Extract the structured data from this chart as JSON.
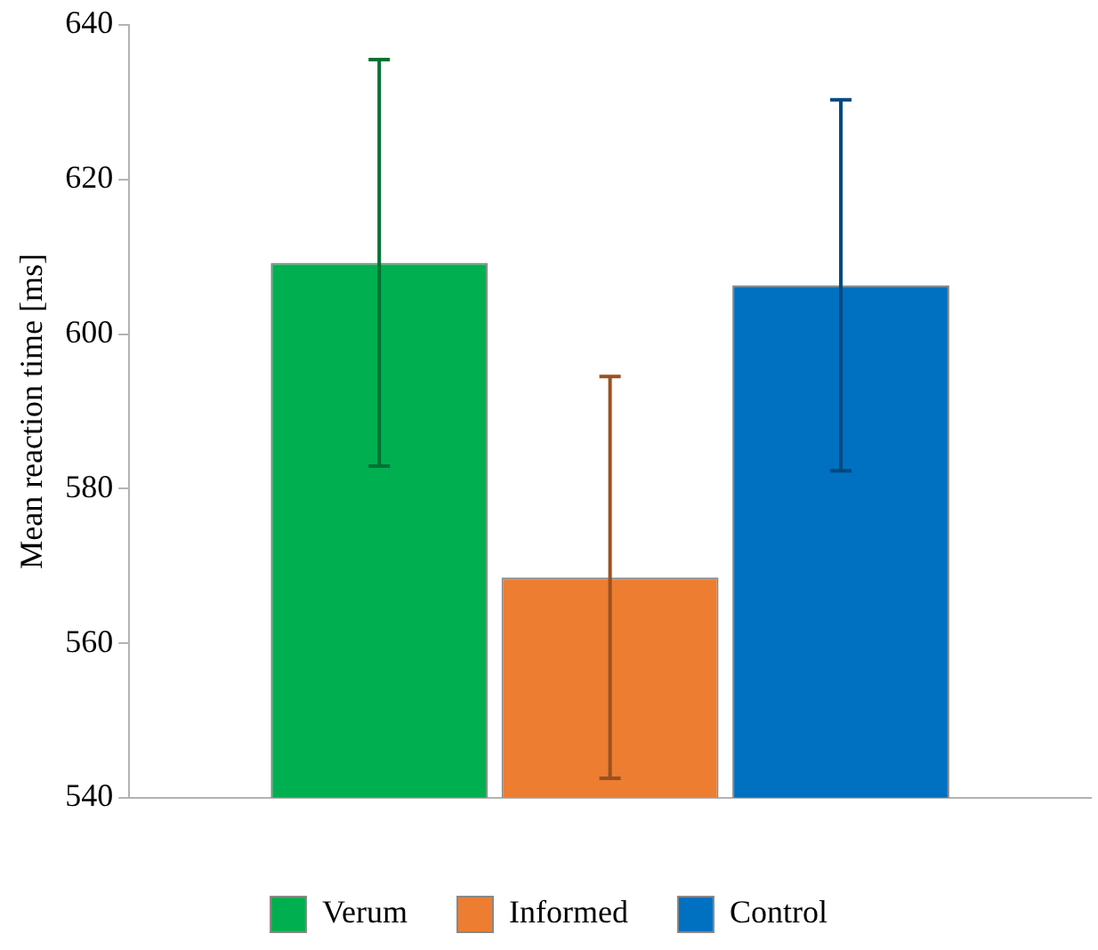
{
  "chart_data": {
    "type": "bar",
    "ylabel": "Mean reaction time [ms]",
    "categories": [
      null
    ],
    "series": [
      {
        "name": "Verum",
        "color": "#00b050",
        "values": [
          609.2
        ],
        "errors": [
          26.3
        ]
      },
      {
        "name": "Informed",
        "color": "#ed7d31",
        "values": [
          568.5
        ],
        "errors": [
          26
        ]
      },
      {
        "name": "Control",
        "color": "#0070c0",
        "values": [
          606.3
        ],
        "errors": [
          24
        ]
      }
    ],
    "ylim": [
      540,
      640
    ],
    "yticks": [
      540,
      560,
      580,
      600,
      620,
      640
    ],
    "grid": false,
    "legend": "bottom"
  }
}
